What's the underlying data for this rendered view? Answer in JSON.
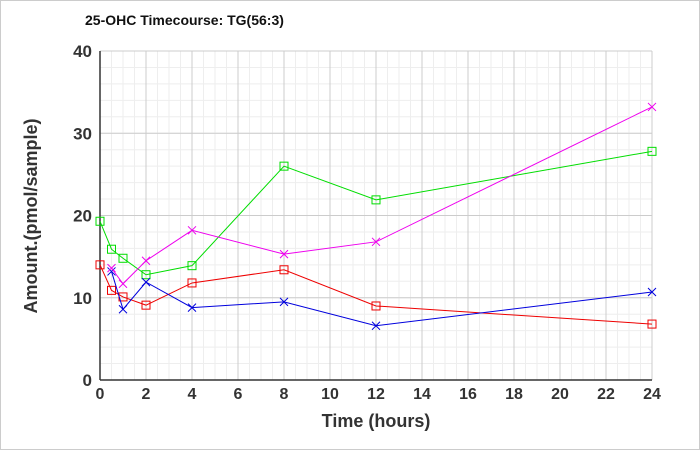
{
  "chart_data": {
    "type": "line",
    "title": "25-OHC Timecourse: TG(56:3)",
    "xlabel": "Time (hours)",
    "ylabel": "Amount.(pmol/sample)",
    "xlim": [
      0,
      24
    ],
    "ylim": [
      0,
      40
    ],
    "xticks": [
      0,
      2,
      4,
      6,
      8,
      10,
      12,
      14,
      16,
      18,
      20,
      22,
      24
    ],
    "yticks": [
      0,
      10,
      20,
      30,
      40
    ],
    "grid": true,
    "series": [
      {
        "name": "green",
        "color": "#00dd00",
        "marker": "square",
        "x": [
          0,
          0.5,
          1,
          2,
          4,
          8,
          12,
          24
        ],
        "y": [
          19.3,
          15.9,
          14.8,
          12.8,
          13.9,
          26.0,
          21.9,
          27.8
        ]
      },
      {
        "name": "red",
        "color": "#ee0000",
        "marker": "square",
        "x": [
          0,
          0.5,
          1,
          2,
          4,
          8,
          12,
          24
        ],
        "y": [
          14.0,
          10.9,
          10.1,
          9.1,
          11.8,
          13.4,
          9.0,
          6.8
        ]
      },
      {
        "name": "blue",
        "color": "#0000dd",
        "marker": "x",
        "x": [
          0.5,
          1,
          2,
          4,
          8,
          12,
          24
        ],
        "y": [
          13.2,
          8.6,
          11.9,
          8.8,
          9.5,
          6.6,
          10.7
        ]
      },
      {
        "name": "magenta",
        "color": "#ee00ee",
        "marker": "x",
        "x": [
          0.5,
          1,
          2,
          4,
          8,
          12,
          24
        ],
        "y": [
          13.6,
          11.7,
          14.5,
          18.2,
          15.3,
          16.8,
          33.2
        ]
      }
    ]
  }
}
